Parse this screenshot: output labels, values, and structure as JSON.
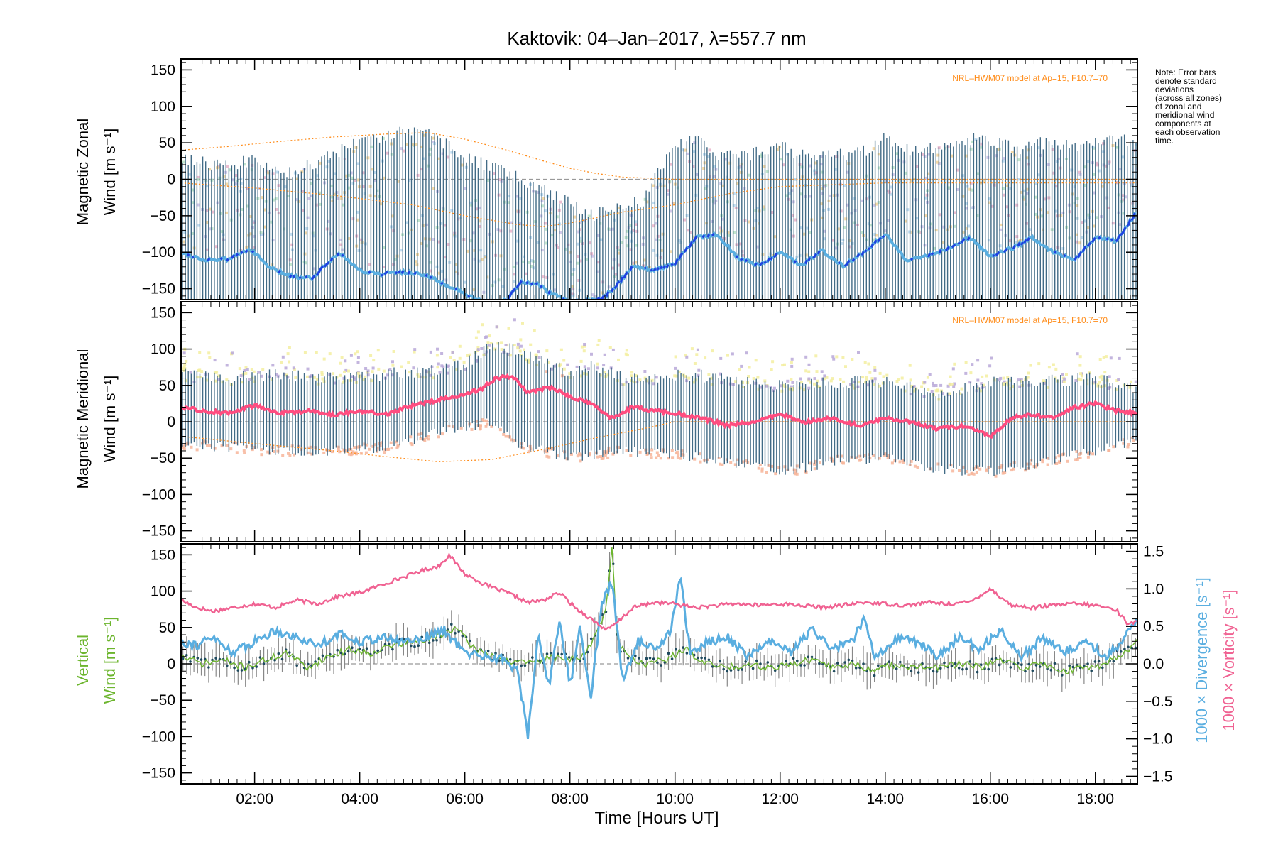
{
  "figure": {
    "title": "Kaktovik: 04–Jan–2017, λ=557.7 nm",
    "note": [
      "Note: Error bars",
      "denote standard",
      "deviations",
      "(across all zones)",
      "of zonal and",
      "meridional wind",
      "components at",
      "each observation",
      "time."
    ],
    "xlabel": "Time [Hours UT]",
    "xticks": [
      "02:00",
      "04:00",
      "06:00",
      "08:00",
      "10:00",
      "12:00",
      "14:00",
      "16:00",
      "18:00"
    ],
    "model_label": "NRL–HWM07 model at Ap=15, F10.7=70",
    "colors": {
      "zonal_mean": "#5aaee0",
      "zonal_dark": "#1f3fe0",
      "meridional_mean": "#ff4d80",
      "errorbar": "#2e5c7a",
      "model": "#ff8c1a",
      "vertical": "#6cb52d",
      "divergence": "#5aaee0",
      "vorticity": "#f06292",
      "meridional_upper": "#f3eea0",
      "meridional_lower": "#f7b59a",
      "meridional_scatter": "#b9a8d8"
    }
  },
  "panels": [
    {
      "ylabel_line1": "Magnetic Zonal",
      "ylabel_line2": "Wind [m s⁻¹]"
    },
    {
      "ylabel_line1": "Magnetic Meridional",
      "ylabel_line2": "Wind [m s⁻¹]"
    },
    {
      "ylabel_line1": "Vertical",
      "ylabel_line2": "Wind [m s⁻¹]",
      "right_label_1": "1000 × Divergence [s⁻¹]",
      "right_label_2": "1000 × Vorticity [s⁻¹]"
    }
  ],
  "chart_data": [
    {
      "type": "line",
      "panel": "zonal",
      "xlim": [
        0.6,
        18.8
      ],
      "ylim": [
        -165,
        165
      ],
      "yticks": [
        150,
        100,
        50,
        0,
        -50,
        -100,
        -150
      ],
      "ytick_labels": [
        "150",
        "100",
        "50",
        "0",
        "−50",
        "−100",
        "−150"
      ],
      "grid": false,
      "series": [
        {
          "role": "mean",
          "x": [
            0.6,
            1.0,
            1.5,
            1.9,
            2.3,
            2.7,
            3.1,
            3.6,
            4.0,
            4.4,
            4.8,
            5.2,
            5.5,
            5.8,
            6.2,
            6.5,
            6.8,
            7.1,
            7.4,
            7.6,
            8.0,
            8.6,
            8.9,
            9.2,
            9.6,
            10.0,
            10.4,
            10.8,
            11.2,
            11.6,
            12.0,
            12.4,
            12.8,
            13.2,
            13.6,
            14.0,
            14.4,
            14.8,
            15.2,
            15.6,
            16.0,
            16.4,
            16.8,
            17.2,
            17.6,
            18.0,
            18.4,
            18.8
          ],
          "y": [
            -100,
            -110,
            -110,
            -95,
            -122,
            -133,
            -135,
            -100,
            -125,
            -130,
            -127,
            -130,
            -140,
            -150,
            -165,
            -170,
            -165,
            -140,
            -145,
            -155,
            -168,
            -165,
            -145,
            -118,
            -125,
            -115,
            -80,
            -75,
            -108,
            -118,
            -100,
            -118,
            -98,
            -118,
            -100,
            -75,
            -110,
            -105,
            -95,
            -80,
            -105,
            -95,
            -80,
            -100,
            -110,
            -80,
            -85,
            -43
          ]
        },
        {
          "role": "upper_envelope",
          "x": [
            0.6,
            1.3,
            2.0,
            2.7,
            3.4,
            4.1,
            4.8,
            5.1,
            5.6,
            6.2,
            6.8,
            7.4,
            7.9,
            8.4,
            8.8,
            9.4,
            9.9,
            10.4,
            10.9,
            11.5,
            12.0,
            12.5,
            13.0,
            13.5,
            14.0,
            14.5,
            15.0,
            15.5,
            16.0,
            16.5,
            17.0,
            17.5,
            18.0,
            18.5,
            18.8
          ],
          "y": [
            30,
            20,
            25,
            10,
            30,
            55,
            65,
            70,
            50,
            25,
            10,
            -10,
            -30,
            -50,
            -40,
            -30,
            40,
            55,
            30,
            35,
            45,
            30,
            35,
            35,
            55,
            40,
            45,
            55,
            55,
            40,
            50,
            45,
            50,
            55,
            50
          ]
        },
        {
          "role": "model",
          "x": [
            0.6,
            1.5,
            2.5,
            3.5,
            4.5,
            5.3,
            6.0,
            6.8,
            7.5,
            8.0,
            8.5,
            9.0,
            10.0,
            11.0,
            12.0,
            13.0,
            14.0,
            15.0,
            16.0,
            17.0,
            18.0,
            18.8
          ],
          "y": [
            40,
            45,
            52,
            58,
            62,
            64,
            55,
            40,
            25,
            15,
            8,
            3,
            0,
            0,
            0,
            0,
            0,
            0,
            0,
            0,
            0,
            0
          ]
        },
        {
          "role": "model_lower",
          "x": [
            0.6,
            2.0,
            3.5,
            5.0,
            6.0,
            7.0,
            7.5,
            8.0,
            9.0,
            10.0,
            11.0,
            12.0,
            14.0,
            16.0,
            18.0,
            18.8
          ],
          "y": [
            -5,
            -12,
            -22,
            -35,
            -50,
            -62,
            -65,
            -60,
            -45,
            -35,
            -20,
            -10,
            -5,
            -5,
            -5,
            -5
          ]
        }
      ]
    },
    {
      "type": "line",
      "panel": "meridional",
      "xlim": [
        0.6,
        18.8
      ],
      "ylim": [
        -165,
        165
      ],
      "yticks": [
        150,
        100,
        50,
        0,
        -50,
        -100,
        -150
      ],
      "ytick_labels": [
        "150",
        "100",
        "50",
        "0",
        "−50",
        "−100",
        "−150"
      ],
      "grid": false,
      "series": [
        {
          "role": "mean",
          "x": [
            0.6,
            1.0,
            1.5,
            2.0,
            2.5,
            3.0,
            3.5,
            4.0,
            4.5,
            5.0,
            5.5,
            6.0,
            6.3,
            6.6,
            6.9,
            7.2,
            7.6,
            8.0,
            8.4,
            8.8,
            9.2,
            9.6,
            10.0,
            10.5,
            11.0,
            11.5,
            12.0,
            12.5,
            13.0,
            13.5,
            14.0,
            14.5,
            15.0,
            15.5,
            16.0,
            16.4,
            16.8,
            17.2,
            17.6,
            18.0,
            18.4,
            18.8
          ],
          "y": [
            20,
            15,
            12,
            22,
            12,
            15,
            10,
            15,
            10,
            22,
            30,
            38,
            45,
            60,
            62,
            40,
            48,
            35,
            25,
            5,
            20,
            15,
            12,
            5,
            -5,
            0,
            10,
            0,
            5,
            -5,
            5,
            0,
            -10,
            -5,
            -20,
            5,
            10,
            5,
            20,
            25,
            15,
            12
          ]
        },
        {
          "role": "upper_envelope",
          "x": [
            0.6,
            1.5,
            2.5,
            3.5,
            4.5,
            5.5,
            6.0,
            6.5,
            7.0,
            7.5,
            8.0,
            8.5,
            9.0,
            9.5,
            10.0,
            11.0,
            12.0,
            13.0,
            14.0,
            15.0,
            16.0,
            17.0,
            18.0,
            18.8
          ],
          "y": [
            65,
            60,
            65,
            60,
            65,
            70,
            80,
            105,
            100,
            80,
            70,
            75,
            60,
            60,
            65,
            60,
            50,
            55,
            55,
            40,
            55,
            55,
            60,
            45
          ]
        },
        {
          "role": "lower_envelope",
          "x": [
            0.6,
            1.5,
            2.5,
            3.5,
            4.5,
            5.5,
            6.0,
            6.5,
            7.0,
            7.5,
            8.0,
            8.5,
            9.0,
            10.0,
            11.0,
            12.0,
            13.0,
            14.0,
            15.0,
            16.0,
            17.0,
            18.0,
            18.8
          ],
          "y": [
            -30,
            -35,
            -40,
            -40,
            -35,
            -15,
            -10,
            0,
            -30,
            -40,
            -50,
            -45,
            -40,
            -45,
            -55,
            -70,
            -55,
            -50,
            -65,
            -70,
            -55,
            -40,
            -25
          ]
        },
        {
          "role": "model",
          "x": [
            0.6,
            2.0,
            3.5,
            4.5,
            5.5,
            6.5,
            7.0,
            7.5,
            8.0,
            8.5,
            9.0,
            9.5,
            10.0,
            12.0,
            14.0,
            16.0,
            18.0,
            18.8
          ],
          "y": [
            -20,
            -30,
            -40,
            -48,
            -55,
            -52,
            -45,
            -38,
            -30,
            -22,
            -15,
            -8,
            0,
            0,
            0,
            0,
            0,
            0
          ]
        }
      ]
    },
    {
      "type": "line",
      "panel": "vertical",
      "xlim": [
        0.6,
        18.8
      ],
      "ylim": [
        -165,
        165
      ],
      "yticks": [
        150,
        100,
        50,
        0,
        -50,
        -100,
        -150
      ],
      "ytick_labels": [
        "150",
        "100",
        "50",
        "0",
        "−50",
        "−100",
        "−150"
      ],
      "y2lim": [
        -1.6,
        1.6
      ],
      "y2ticks": [
        1.5,
        1.0,
        0.5,
        0.0,
        -0.5,
        -1.0,
        -1.5
      ],
      "y2tick_labels": [
        "1.5",
        "1.0",
        "0.5",
        "0.0",
        "−0.5",
        "−1.0",
        "−1.5"
      ],
      "grid": false,
      "series": [
        {
          "role": "vorticity",
          "axis": "right",
          "x": [
            0.6,
            0.9,
            1.2,
            1.6,
            2.0,
            2.4,
            2.8,
            3.2,
            3.6,
            4.0,
            4.4,
            4.8,
            5.2,
            5.5,
            5.7,
            6.0,
            6.4,
            6.8,
            7.2,
            7.5,
            7.8,
            8.1,
            8.4,
            8.7,
            8.9,
            9.2,
            9.6,
            10.0,
            10.4,
            10.8,
            11.2,
            11.6,
            12.0,
            12.4,
            12.8,
            13.2,
            13.6,
            14.0,
            14.4,
            14.8,
            15.2,
            15.6,
            16.0,
            16.4,
            16.8,
            17.2,
            17.6,
            18.0,
            18.4,
            18.6,
            18.8
          ],
          "y": [
            0.85,
            0.75,
            0.7,
            0.75,
            0.8,
            0.75,
            0.85,
            0.8,
            0.9,
            0.95,
            1.05,
            1.15,
            1.25,
            1.3,
            1.45,
            1.2,
            1.05,
            0.95,
            0.82,
            0.85,
            0.95,
            0.75,
            0.6,
            0.45,
            0.55,
            0.75,
            0.82,
            0.8,
            0.75,
            0.78,
            0.8,
            0.78,
            0.8,
            0.78,
            0.75,
            0.78,
            0.82,
            0.8,
            0.78,
            0.82,
            0.8,
            0.82,
            1.0,
            0.78,
            0.75,
            0.78,
            0.8,
            0.78,
            0.72,
            0.55,
            0.55
          ]
        },
        {
          "role": "divergence",
          "axis": "right",
          "x": [
            0.6,
            0.9,
            1.2,
            1.6,
            2.0,
            2.4,
            2.8,
            3.2,
            3.6,
            4.0,
            4.4,
            4.8,
            5.2,
            5.6,
            6.0,
            6.4,
            6.8,
            7.0,
            7.2,
            7.4,
            7.6,
            7.8,
            8.0,
            8.2,
            8.4,
            8.6,
            8.8,
            9.0,
            9.3,
            9.6,
            9.9,
            10.1,
            10.3,
            10.6,
            11.0,
            11.4,
            11.8,
            12.2,
            12.6,
            13.0,
            13.4,
            13.6,
            13.8,
            14.2,
            14.6,
            15.0,
            15.4,
            15.8,
            16.2,
            16.6,
            17.0,
            17.4,
            17.8,
            18.2,
            18.5,
            18.8
          ],
          "y": [
            0.3,
            0.25,
            0.35,
            0.15,
            0.3,
            0.45,
            0.35,
            0.25,
            0.4,
            0.3,
            0.35,
            0.3,
            0.35,
            0.45,
            0.15,
            0.1,
            0.05,
            -0.1,
            -0.95,
            0.4,
            -0.3,
            0.6,
            -0.3,
            0.5,
            -0.45,
            0.8,
            1.1,
            -0.2,
            0.3,
            0.2,
            0.4,
            1.15,
            0.1,
            0.3,
            0.35,
            0.1,
            0.3,
            0.15,
            0.45,
            0.2,
            0.3,
            0.65,
            0.05,
            0.35,
            0.3,
            0.1,
            0.35,
            0.2,
            0.45,
            0.1,
            0.35,
            0.15,
            0.3,
            0.1,
            0.3,
            0.6
          ]
        },
        {
          "role": "vertical_wind",
          "axis": "left",
          "x": [
            0.6,
            1.0,
            1.4,
            1.8,
            2.2,
            2.6,
            3.0,
            3.4,
            3.8,
            4.2,
            4.6,
            5.0,
            5.4,
            5.8,
            6.2,
            6.6,
            7.0,
            7.4,
            7.8,
            8.2,
            8.5,
            8.7,
            8.8,
            8.9,
            9.1,
            9.4,
            9.8,
            10.2,
            10.6,
            11.0,
            11.4,
            11.8,
            12.2,
            12.6,
            13.0,
            13.4,
            13.8,
            14.2,
            14.6,
            15.0,
            15.4,
            15.8,
            16.2,
            16.6,
            17.0,
            17.4,
            17.8,
            18.2,
            18.5,
            18.8
          ],
          "y": [
            10,
            0,
            5,
            -5,
            5,
            15,
            -5,
            10,
            20,
            15,
            25,
            30,
            35,
            50,
            20,
            10,
            0,
            5,
            10,
            5,
            40,
            80,
            165,
            30,
            10,
            0,
            5,
            20,
            0,
            -5,
            0,
            -5,
            0,
            5,
            -5,
            0,
            -10,
            0,
            -5,
            -5,
            0,
            -5,
            5,
            -5,
            0,
            -10,
            -5,
            0,
            15,
            30
          ]
        }
      ]
    }
  ]
}
